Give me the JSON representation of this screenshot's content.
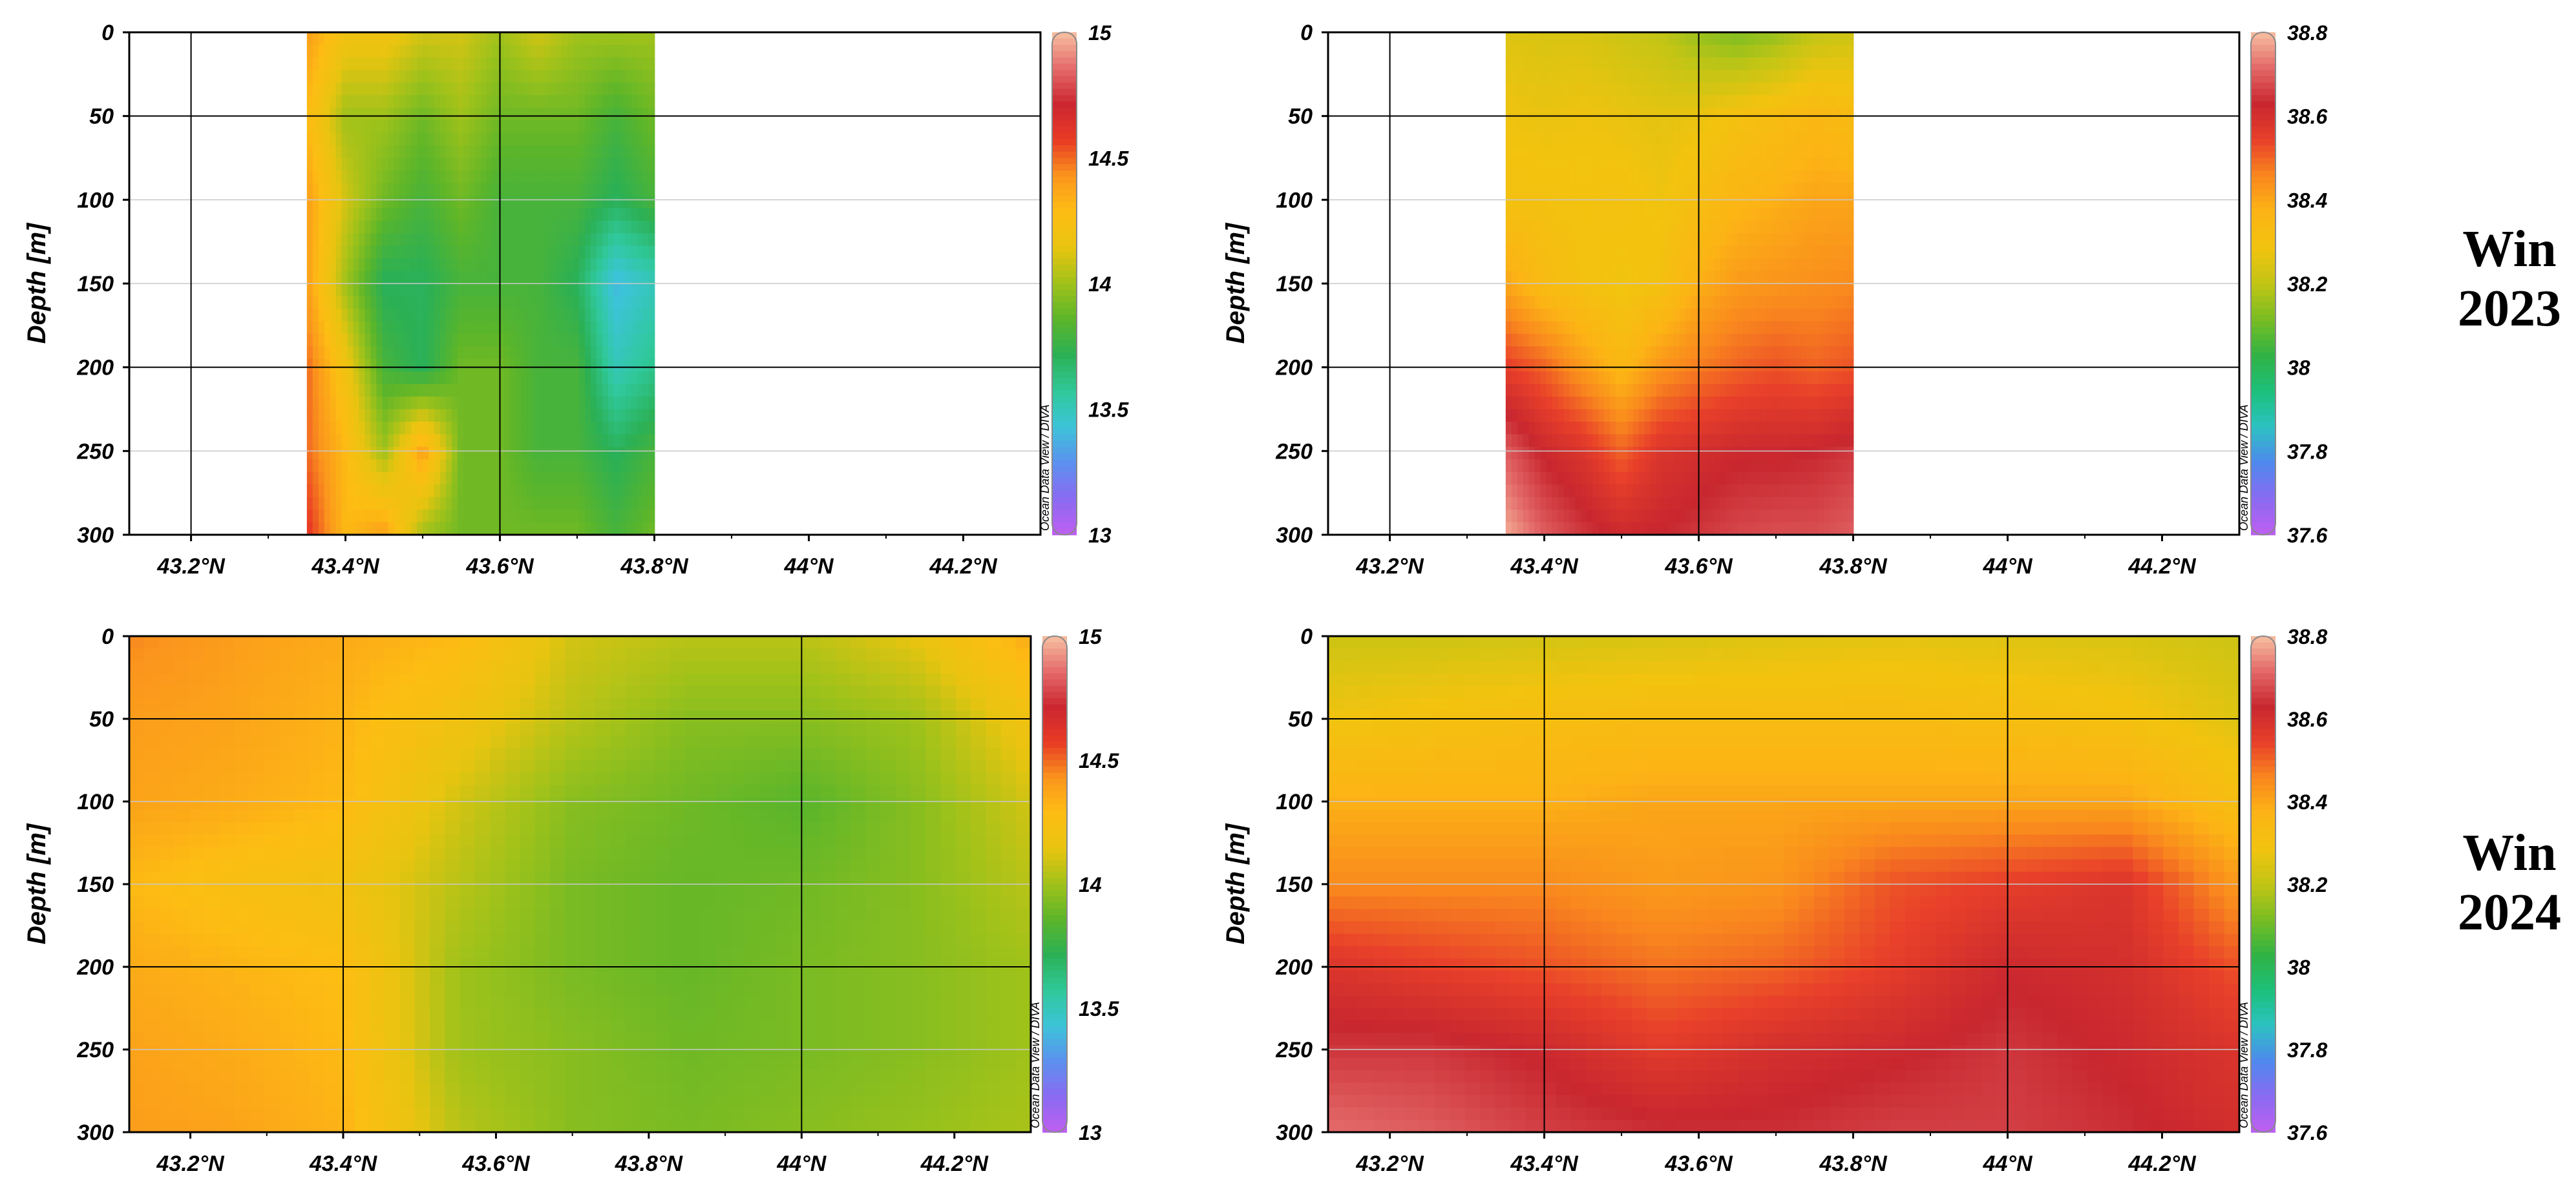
{
  "colors": {
    "temperature_scale": [
      "#bf5ff0",
      "#8a6af2",
      "#5c90ef",
      "#3cc4d8",
      "#30c89a",
      "#2bb055",
      "#5bb52a",
      "#a0c21a",
      "#e8c410",
      "#fdbd13",
      "#fb951d",
      "#e83a24",
      "#cc2731",
      "#e56b6b",
      "#f7c0a2"
    ],
    "salinity_scale": [
      "#bf5ff0",
      "#8a6af2",
      "#4f88ee",
      "#2cc2c2",
      "#1cc07a",
      "#30b244",
      "#78bd22",
      "#c2c515",
      "#f2c30f",
      "#fcb415",
      "#f9871e",
      "#e8402a",
      "#c8272f",
      "#e36868",
      "#f7c0a2"
    ],
    "axis": "#000000",
    "gridline": "#000000",
    "minor_gridline": "#c8c8c8"
  },
  "watermark": "Ocean Data View / DIVA",
  "row_labels": [
    {
      "line1": "Win",
      "line2": "2023"
    },
    {
      "line1": "Win",
      "line2": "2024"
    }
  ],
  "chart_data": [
    {
      "type": "heatmap",
      "variable": "temperature",
      "ylabel": "Depth [m]",
      "x_ticks": [
        "43.2°N",
        "43.4°N",
        "43.6°N",
        "43.8°N",
        "44°N",
        "44.2°N"
      ],
      "y_ticks": [
        "0",
        "50",
        "100",
        "150",
        "200",
        "250",
        "300"
      ],
      "xlim": [
        43.12,
        44.3
      ],
      "ylim": [
        300,
        0
      ],
      "data_lat_range": [
        43.35,
        43.8
      ],
      "colorbar": {
        "min": 13,
        "max": 15,
        "ticks": [
          "13",
          "13.5",
          "14",
          "14.5",
          "15"
        ]
      },
      "sections_lat": [
        43.35,
        43.4,
        43.45,
        43.5,
        43.55,
        43.6,
        43.65,
        43.7,
        43.75,
        43.8
      ],
      "depth_levels": [
        0,
        50,
        100,
        150,
        200,
        250,
        300
      ],
      "values": [
        [
          14.4,
          14.2,
          14.2,
          14.1,
          14.1,
          14.0,
          14.1,
          14.0,
          14.0,
          14.0
        ],
        [
          14.3,
          14.0,
          14.0,
          13.9,
          14.0,
          13.9,
          13.9,
          13.9,
          13.8,
          13.9
        ],
        [
          14.4,
          14.1,
          13.9,
          13.8,
          13.9,
          13.8,
          13.8,
          13.8,
          13.7,
          13.8
        ],
        [
          14.4,
          14.0,
          13.7,
          13.7,
          13.8,
          13.8,
          13.8,
          13.7,
          13.4,
          13.5
        ],
        [
          14.5,
          14.2,
          13.8,
          13.7,
          13.9,
          13.9,
          13.8,
          13.8,
          13.5,
          13.6
        ],
        [
          14.5,
          14.3,
          14.0,
          14.4,
          13.9,
          13.9,
          13.8,
          13.8,
          13.7,
          13.8
        ],
        [
          14.6,
          14.3,
          14.4,
          14.0,
          13.9,
          13.9,
          13.9,
          13.9,
          13.8,
          13.9
        ]
      ]
    },
    {
      "type": "heatmap",
      "variable": "salinity",
      "ylabel": "Depth [m]",
      "x_ticks": [
        "43.2°N",
        "43.4°N",
        "43.6°N",
        "43.8°N",
        "44°N",
        "44.2°N"
      ],
      "y_ticks": [
        "0",
        "50",
        "100",
        "150",
        "200",
        "250",
        "300"
      ],
      "xlim": [
        43.12,
        44.3
      ],
      "ylim": [
        300,
        0
      ],
      "data_lat_range": [
        43.35,
        43.8
      ],
      "colorbar": {
        "min": 37.6,
        "max": 38.8,
        "ticks": [
          "37.6",
          "37.8",
          "38",
          "38.2",
          "38.4",
          "38.6",
          "38.8"
        ]
      },
      "sections_lat": [
        43.35,
        43.4,
        43.45,
        43.5,
        43.55,
        43.6,
        43.65,
        43.7,
        43.75,
        43.8
      ],
      "depth_levels": [
        0,
        50,
        100,
        150,
        200,
        250,
        300
      ],
      "values": [
        [
          38.25,
          38.24,
          38.24,
          38.22,
          38.2,
          38.15,
          38.12,
          38.15,
          38.2,
          38.22
        ],
        [
          38.28,
          38.27,
          38.28,
          38.27,
          38.26,
          38.27,
          38.3,
          38.32,
          38.35,
          38.33
        ],
        [
          38.3,
          38.3,
          38.29,
          38.3,
          38.28,
          38.32,
          38.36,
          38.38,
          38.4,
          38.4
        ],
        [
          38.4,
          38.33,
          38.3,
          38.28,
          38.3,
          38.38,
          38.42,
          38.43,
          38.44,
          38.45
        ],
        [
          38.55,
          38.5,
          38.42,
          38.35,
          38.43,
          38.47,
          38.5,
          38.52,
          38.5,
          38.52
        ],
        [
          38.7,
          38.62,
          38.58,
          38.5,
          38.58,
          38.6,
          38.62,
          38.62,
          38.63,
          38.65
        ],
        [
          38.78,
          38.7,
          38.65,
          38.62,
          38.63,
          38.65,
          38.67,
          38.68,
          38.68,
          38.7
        ]
      ]
    },
    {
      "type": "heatmap",
      "variable": "temperature",
      "ylabel": "Depth [m]",
      "x_ticks": [
        "43.2°N",
        "43.4°N",
        "43.6°N",
        "43.8°N",
        "44°N",
        "44.2°N"
      ],
      "y_ticks": [
        "0",
        "50",
        "100",
        "150",
        "200",
        "250",
        "300"
      ],
      "xlim": [
        43.12,
        44.3
      ],
      "ylim": [
        300,
        0
      ],
      "data_lat_range": [
        43.12,
        44.3
      ],
      "colorbar": {
        "min": 13,
        "max": 15,
        "ticks": [
          "13",
          "13.5",
          "14",
          "14.5",
          "15"
        ]
      },
      "sections_lat": [
        43.12,
        43.25,
        43.4,
        43.55,
        43.7,
        43.85,
        44.0,
        44.15,
        44.3
      ],
      "depth_levels": [
        0,
        50,
        100,
        150,
        200,
        250,
        300
      ],
      "values": [
        [
          14.45,
          14.4,
          14.35,
          14.3,
          14.1,
          14.05,
          14.05,
          14.15,
          14.35
        ],
        [
          14.4,
          14.38,
          14.32,
          14.2,
          14.05,
          13.95,
          13.95,
          14.0,
          14.2
        ],
        [
          14.38,
          14.35,
          14.3,
          14.1,
          13.95,
          13.9,
          13.85,
          13.95,
          14.1
        ],
        [
          14.3,
          14.25,
          14.2,
          14.05,
          13.92,
          13.88,
          13.9,
          13.95,
          14.05
        ],
        [
          14.35,
          14.32,
          14.28,
          14.0,
          13.92,
          13.88,
          13.92,
          13.95,
          14.0
        ],
        [
          14.38,
          14.35,
          14.3,
          14.0,
          13.95,
          13.9,
          13.92,
          13.95,
          14.0
        ],
        [
          14.4,
          14.38,
          14.32,
          14.05,
          13.95,
          13.92,
          13.95,
          13.98,
          14.02
        ]
      ]
    },
    {
      "type": "heatmap",
      "variable": "salinity",
      "ylabel": "Depth [m]",
      "x_ticks": [
        "43.2°N",
        "43.4°N",
        "43.6°N",
        "43.8°N",
        "44°N",
        "44.2°N"
      ],
      "y_ticks": [
        "0",
        "50",
        "100",
        "150",
        "200",
        "250",
        "300"
      ],
      "xlim": [
        43.12,
        44.3
      ],
      "ylim": [
        300,
        0
      ],
      "data_lat_range": [
        43.12,
        44.3
      ],
      "colorbar": {
        "min": 37.6,
        "max": 38.8,
        "ticks": [
          "37.6",
          "37.8",
          "38",
          "38.2",
          "38.4",
          "38.6",
          "38.8"
        ]
      },
      "sections_lat": [
        43.12,
        43.25,
        43.4,
        43.55,
        43.7,
        43.85,
        44.0,
        44.15,
        44.3
      ],
      "depth_levels": [
        0,
        50,
        100,
        150,
        200,
        250,
        300
      ],
      "values": [
        [
          38.22,
          38.22,
          38.23,
          38.24,
          38.25,
          38.26,
          38.25,
          38.24,
          38.22
        ],
        [
          38.28,
          38.3,
          38.32,
          38.33,
          38.33,
          38.33,
          38.32,
          38.3,
          38.25
        ],
        [
          38.38,
          38.38,
          38.38,
          38.4,
          38.4,
          38.4,
          38.4,
          38.4,
          38.32
        ],
        [
          38.45,
          38.45,
          38.45,
          38.42,
          38.43,
          38.52,
          38.55,
          38.58,
          38.42
        ],
        [
          38.58,
          38.55,
          38.52,
          38.48,
          38.5,
          38.55,
          38.62,
          38.6,
          38.52
        ],
        [
          38.65,
          38.65,
          38.62,
          38.56,
          38.6,
          38.62,
          38.65,
          38.62,
          38.58
        ],
        [
          38.72,
          38.7,
          38.66,
          38.64,
          38.64,
          38.66,
          38.66,
          38.64,
          38.6
        ]
      ]
    }
  ]
}
